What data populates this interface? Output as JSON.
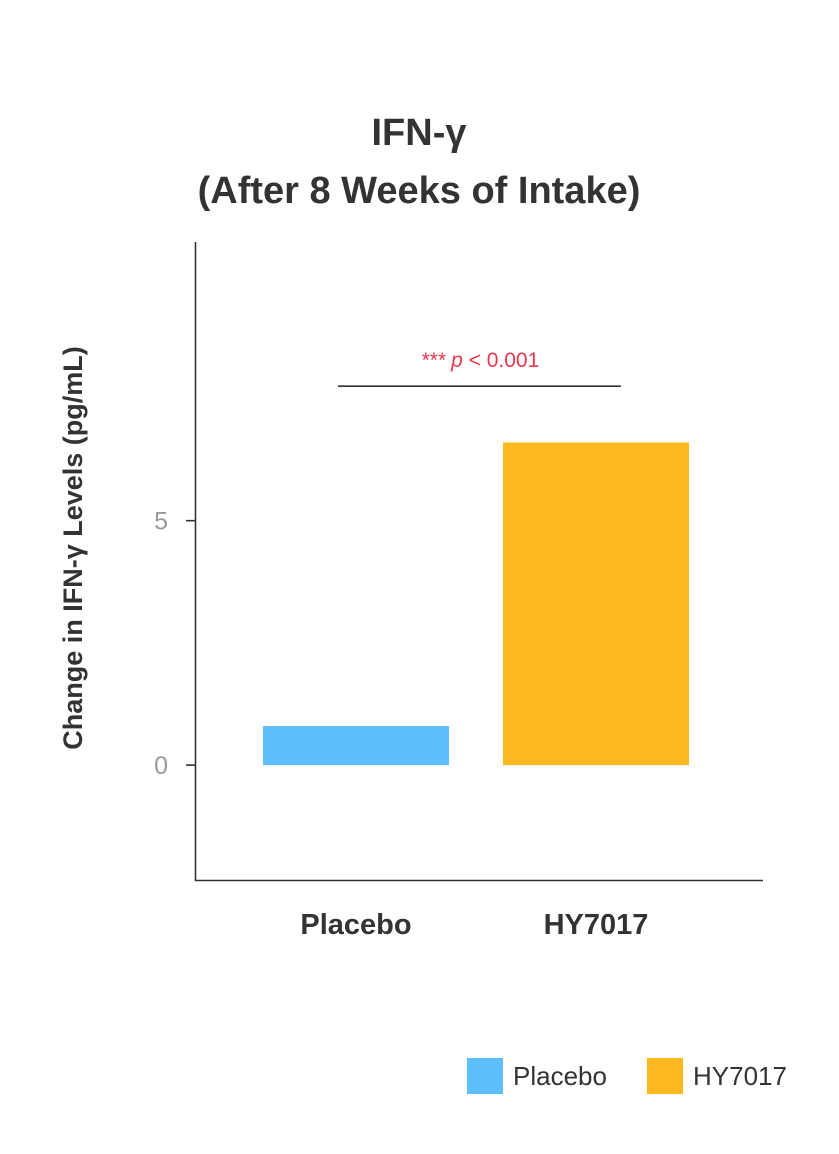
{
  "chart_data": {
    "type": "bar",
    "title": [
      "IFN-γ",
      "(After 8 Weeks of Intake)"
    ],
    "ylabel": "Change in IFN-γ Levels (pg/mL)",
    "xlabel": "",
    "categories": [
      "Placebo",
      "HY7017"
    ],
    "values": [
      0.8,
      6.6
    ],
    "colors": [
      "#5ebfff",
      "#fdb71f"
    ],
    "yticks": [
      0,
      5
    ],
    "ylim": [
      -2.35,
      10.7
    ],
    "grid": false,
    "significance": {
      "stars": "***",
      "p_symbol": "p",
      "text": "< 0.001",
      "color": "#e8384f",
      "between": [
        "Placebo",
        "HY7017"
      ],
      "bracket_y": 7.75
    },
    "legend": {
      "placement": "bottom-right",
      "entries": [
        {
          "label": "Placebo",
          "color": "#5ebfff"
        },
        {
          "label": "HY7017",
          "color": "#fdb71f"
        }
      ]
    }
  }
}
